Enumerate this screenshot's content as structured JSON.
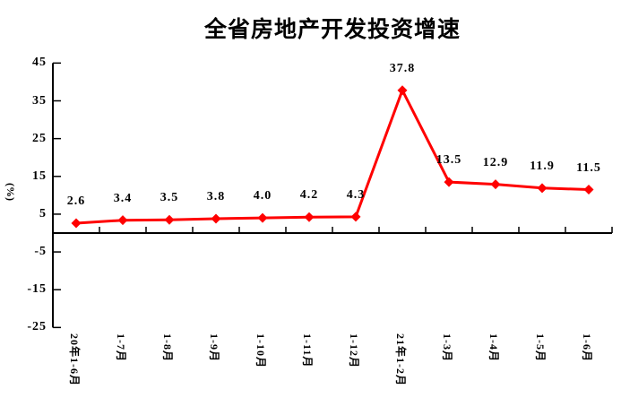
{
  "chart_data": {
    "type": "line",
    "title": "全省房地产开发投资增速",
    "xlabel": "",
    "ylabel": "(%)",
    "categories": [
      "20年1-6月",
      "1-7月",
      "1-8月",
      "1-9月",
      "1-10月",
      "1-11月",
      "1-12月",
      "21年1-2月",
      "1-3月",
      "1-4月",
      "1-5月",
      "1-6月"
    ],
    "series": [
      {
        "name": "全省房地产开发投资增速",
        "values": [
          2.6,
          3.4,
          3.5,
          3.8,
          4.0,
          4.2,
          4.3,
          37.8,
          13.5,
          12.9,
          11.9,
          11.5
        ]
      }
    ],
    "data_labels": [
      "2.6",
      "3.4",
      "3.5",
      "3.8",
      "4.0",
      "4.2",
      "4.3",
      "37.8",
      "13.5",
      "12.9",
      "11.9",
      "11.5"
    ],
    "y_ticks": [
      45,
      35,
      25,
      15,
      5,
      -5,
      -15,
      -25
    ],
    "ylim": [
      -25,
      45
    ],
    "grid": false,
    "legend_position": "none",
    "line_color": "#ff0000",
    "marker": "diamond",
    "marker_color": "#ff0000",
    "axis_color": "#000000",
    "background_color": "#ffffff"
  }
}
